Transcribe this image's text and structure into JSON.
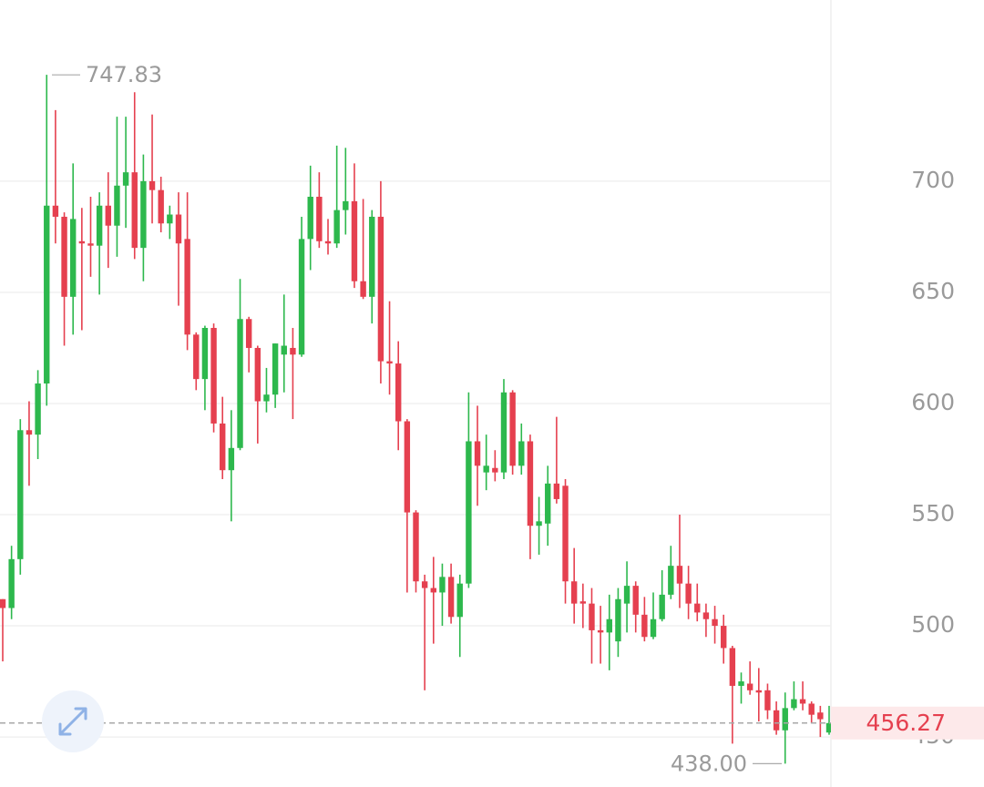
{
  "chart_data": {
    "type": "candlestick",
    "open": [
      512,
      508,
      530,
      588,
      586,
      609,
      689,
      684,
      648,
      673,
      672,
      671,
      689,
      680,
      698,
      704,
      670,
      700,
      696,
      681,
      685,
      674,
      631,
      611,
      634,
      591,
      570,
      580,
      638,
      625,
      601,
      604,
      622,
      625,
      622,
      674,
      693,
      673,
      672,
      687,
      691,
      655,
      648,
      684,
      619,
      618,
      592,
      551,
      520,
      517,
      515,
      522,
      504,
      519,
      583,
      569,
      571,
      569,
      605,
      572,
      583,
      545,
      546,
      564,
      563,
      520,
      511,
      510,
      498,
      497,
      493,
      510,
      518,
      505,
      495,
      503,
      514,
      527,
      519,
      510,
      506,
      503,
      500,
      490,
      473,
      474,
      471,
      471,
      462,
      453,
      463,
      467,
      465,
      461,
      452
    ],
    "high": [
      512,
      536,
      593,
      601,
      615,
      747.83,
      732,
      686,
      708,
      688,
      693,
      695,
      704,
      729,
      729,
      740,
      712,
      730,
      702,
      689,
      695,
      695,
      632,
      635,
      636,
      603,
      597,
      656,
      639,
      626,
      616,
      627,
      649,
      634,
      684,
      707,
      704,
      683,
      716,
      715,
      708,
      692,
      687,
      700,
      646,
      628,
      593,
      552,
      523,
      531,
      528,
      528,
      523,
      605,
      599,
      586,
      579,
      611,
      606,
      591,
      586,
      558,
      572,
      594,
      566,
      535,
      519,
      517,
      509,
      514,
      517,
      529,
      520,
      513,
      515,
      525,
      536,
      550,
      527,
      519,
      510,
      509,
      505,
      491,
      479,
      484,
      481,
      474,
      466,
      470,
      475,
      475,
      466,
      464,
      464
    ],
    "low": [
      484,
      503,
      523,
      563,
      575,
      599,
      672,
      626,
      631,
      633,
      657,
      649,
      661,
      666,
      679,
      665,
      655,
      681,
      677,
      674,
      644,
      624,
      606,
      597,
      587,
      566,
      547,
      579,
      614,
      582,
      596,
      598,
      605,
      593,
      621,
      660,
      670,
      667,
      670,
      676,
      652,
      647,
      636,
      609,
      604,
      579,
      515,
      515,
      471,
      492,
      500,
      501,
      486,
      517,
      554,
      561,
      565,
      566,
      568,
      568,
      530,
      532,
      536,
      555,
      510,
      501,
      499,
      483,
      483,
      480,
      486,
      497,
      497,
      493,
      494,
      502,
      512,
      508,
      503,
      502,
      495,
      492,
      483,
      447,
      465,
      469,
      457,
      458,
      451,
      438,
      462,
      462,
      456,
      450,
      451
    ],
    "close": [
      508,
      530,
      588,
      586,
      609,
      689,
      684,
      648,
      683,
      672,
      671,
      689,
      680,
      698,
      704,
      670,
      700,
      696,
      681,
      685,
      672,
      631,
      611,
      634,
      591,
      570,
      580,
      638,
      625,
      601,
      604,
      627,
      626,
      622,
      674,
      693,
      673,
      672,
      687,
      691,
      655,
      648,
      684,
      619,
      618,
      592,
      551,
      520,
      517,
      515,
      522,
      504,
      519,
      583,
      572,
      572,
      569,
      605,
      572,
      583,
      545,
      547,
      564,
      557,
      520,
      510,
      510,
      498,
      497,
      503,
      512,
      518,
      505,
      495,
      503,
      514,
      527,
      519,
      510,
      506,
      503,
      500,
      490,
      473,
      475,
      471,
      470,
      462,
      453,
      463,
      467,
      465,
      460,
      458,
      456.27
    ],
    "up_color": "#2db84d",
    "down_color": "#e5404f",
    "ylim": [
      427.5,
      781.5
    ],
    "yticks": [
      450,
      500,
      550,
      600,
      650,
      700
    ],
    "grid": true,
    "high_marker": 747.83,
    "low_marker": {
      "value": 438,
      "label": "438.00"
    },
    "last_price": 456.27
  }
}
